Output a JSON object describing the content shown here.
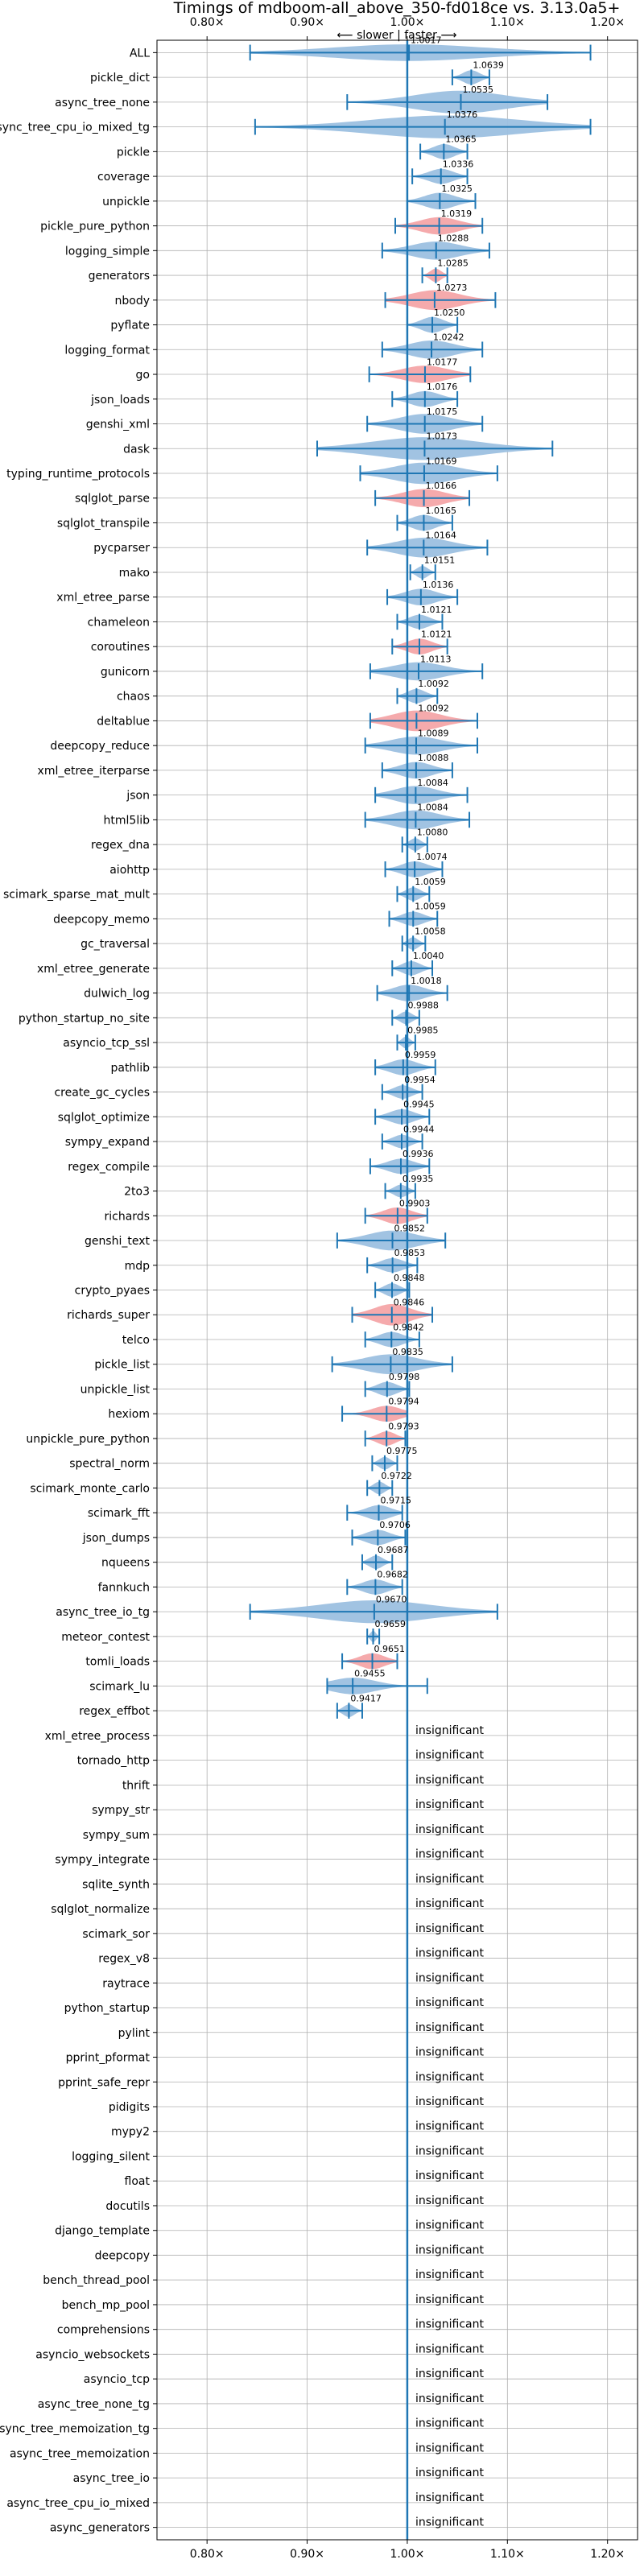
{
  "chart_data": {
    "type": "violin",
    "title": "Timings of mdboom-all_above_350-fd018ce vs. 3.13.0a5+",
    "direction_label": "⟵ slower | faster ⟶",
    "x_ticks": [
      "0.80×",
      "0.90×",
      "1.00×",
      "1.10×",
      "1.20×"
    ],
    "x_tick_values": [
      0.8,
      0.9,
      1.0,
      1.1,
      1.2
    ],
    "xlim": [
      0.75,
      1.23
    ],
    "reference_line": 1.0,
    "insignificant_label": "insignificant",
    "colors": {
      "blue": "#1f77b4",
      "violin_blue": "#9cc0e0",
      "violin_red": "#f4a5a8",
      "grid": "#b0b0b0"
    },
    "benchmarks": [
      {
        "name": "ALL",
        "value": 1.0017,
        "label": "1.0017",
        "lo": 0.843,
        "hi": 1.183,
        "q1": 0.985,
        "q3": 1.02,
        "w": 0.04,
        "color": "blue"
      },
      {
        "name": "pickle_dict",
        "value": 1.0639,
        "label": "1.0639",
        "lo": 1.045,
        "hi": 1.082,
        "q1": 1.055,
        "q3": 1.072,
        "w": 0.025,
        "color": "blue"
      },
      {
        "name": "async_tree_none",
        "value": 1.0535,
        "label": "1.0535",
        "lo": 0.94,
        "hi": 1.14,
        "q1": 1.0,
        "q3": 1.09,
        "w": 0.08,
        "color": "blue"
      },
      {
        "name": "async_tree_cpu_io_mixed_tg",
        "value": 1.0376,
        "label": "1.0376",
        "lo": 0.848,
        "hi": 1.183,
        "q1": 0.98,
        "q3": 1.1,
        "w": 0.12,
        "color": "blue"
      },
      {
        "name": "pickle",
        "value": 1.0365,
        "label": "1.0365",
        "lo": 1.013,
        "hi": 1.06,
        "q1": 1.03,
        "q3": 1.045,
        "w": 0.03,
        "color": "blue"
      },
      {
        "name": "coverage",
        "value": 1.0336,
        "label": "1.0336",
        "lo": 1.005,
        "hi": 1.06,
        "q1": 1.025,
        "q3": 1.045,
        "w": 0.03,
        "color": "blue"
      },
      {
        "name": "unpickle",
        "value": 1.0325,
        "label": "1.0325",
        "lo": 1.0,
        "hi": 1.068,
        "q1": 1.02,
        "q3": 1.045,
        "w": 0.04,
        "color": "blue"
      },
      {
        "name": "pickle_pure_python",
        "value": 1.0319,
        "label": "1.0319",
        "lo": 0.988,
        "hi": 1.075,
        "q1": 1.02,
        "q3": 1.045,
        "w": 0.045,
        "color": "red"
      },
      {
        "name": "logging_simple",
        "value": 1.0288,
        "label": "1.0288",
        "lo": 0.975,
        "hi": 1.082,
        "q1": 1.01,
        "q3": 1.05,
        "w": 0.05,
        "color": "blue"
      },
      {
        "name": "generators",
        "value": 1.0285,
        "label": "1.0285",
        "lo": 1.015,
        "hi": 1.04,
        "q1": 1.022,
        "q3": 1.034,
        "w": 0.02,
        "color": "red"
      },
      {
        "name": "nbody",
        "value": 1.0273,
        "label": "1.0273",
        "lo": 0.978,
        "hi": 1.088,
        "q1": 1.005,
        "q3": 1.05,
        "w": 0.06,
        "color": "red"
      },
      {
        "name": "pyflate",
        "value": 1.025,
        "label": "1.0250",
        "lo": 1.0,
        "hi": 1.05,
        "q1": 1.015,
        "q3": 1.035,
        "w": 0.035,
        "color": "blue"
      },
      {
        "name": "logging_format",
        "value": 1.0242,
        "label": "1.0242",
        "lo": 0.975,
        "hi": 1.075,
        "q1": 1.005,
        "q3": 1.045,
        "w": 0.05,
        "color": "blue"
      },
      {
        "name": "go",
        "value": 1.0177,
        "label": "1.0177",
        "lo": 0.962,
        "hi": 1.063,
        "q1": 1.005,
        "q3": 1.03,
        "w": 0.045,
        "color": "red"
      },
      {
        "name": "json_loads",
        "value": 1.0176,
        "label": "1.0176",
        "lo": 0.985,
        "hi": 1.05,
        "q1": 1.005,
        "q3": 1.03,
        "w": 0.035,
        "color": "blue"
      },
      {
        "name": "genshi_xml",
        "value": 1.0175,
        "label": "1.0175",
        "lo": 0.96,
        "hi": 1.075,
        "q1": 0.995,
        "q3": 1.04,
        "w": 0.06,
        "color": "blue"
      },
      {
        "name": "dask",
        "value": 1.0173,
        "label": "1.0173",
        "lo": 0.91,
        "hi": 1.145,
        "q1": 0.98,
        "q3": 1.06,
        "w": 0.09,
        "color": "blue"
      },
      {
        "name": "typing_runtime_protocols",
        "value": 1.0169,
        "label": "1.0169",
        "lo": 0.953,
        "hi": 1.09,
        "q1": 0.99,
        "q3": 1.045,
        "w": 0.07,
        "color": "blue"
      },
      {
        "name": "sqlglot_parse",
        "value": 1.0166,
        "label": "1.0166",
        "lo": 0.968,
        "hi": 1.062,
        "q1": 1.0,
        "q3": 1.035,
        "w": 0.05,
        "color": "red"
      },
      {
        "name": "sqlglot_transpile",
        "value": 1.0165,
        "label": "1.0165",
        "lo": 0.99,
        "hi": 1.045,
        "q1": 1.005,
        "q3": 1.028,
        "w": 0.035,
        "color": "blue"
      },
      {
        "name": "pycparser",
        "value": 1.0164,
        "label": "1.0164",
        "lo": 0.96,
        "hi": 1.08,
        "q1": 1.0,
        "q3": 1.035,
        "w": 0.06,
        "color": "blue"
      },
      {
        "name": "mako",
        "value": 1.0151,
        "label": "1.0151",
        "lo": 1.003,
        "hi": 1.028,
        "q1": 1.01,
        "q3": 1.02,
        "w": 0.015,
        "color": "blue"
      },
      {
        "name": "xml_etree_parse",
        "value": 1.0136,
        "label": "1.0136",
        "lo": 0.98,
        "hi": 1.05,
        "q1": 1.0,
        "q3": 1.028,
        "w": 0.04,
        "color": "blue"
      },
      {
        "name": "chameleon",
        "value": 1.0121,
        "label": "1.0121",
        "lo": 0.99,
        "hi": 1.035,
        "q1": 1.005,
        "q3": 1.02,
        "w": 0.025,
        "color": "blue"
      },
      {
        "name": "coroutines",
        "value": 1.0121,
        "label": "1.0121",
        "lo": 0.985,
        "hi": 1.04,
        "q1": 1.0,
        "q3": 1.025,
        "w": 0.035,
        "color": "red"
      },
      {
        "name": "gunicorn",
        "value": 1.0113,
        "label": "1.0113",
        "lo": 0.963,
        "hi": 1.075,
        "q1": 0.995,
        "q3": 1.03,
        "w": 0.05,
        "color": "blue"
      },
      {
        "name": "chaos",
        "value": 1.0092,
        "label": "1.0092",
        "lo": 0.99,
        "hi": 1.03,
        "q1": 1.0,
        "q3": 1.018,
        "w": 0.025,
        "color": "blue"
      },
      {
        "name": "deltablue",
        "value": 1.0092,
        "label": "1.0092",
        "lo": 0.963,
        "hi": 1.07,
        "q1": 0.99,
        "q3": 1.03,
        "w": 0.065,
        "color": "red"
      },
      {
        "name": "deepcopy_reduce",
        "value": 1.0089,
        "label": "1.0089",
        "lo": 0.958,
        "hi": 1.07,
        "q1": 0.99,
        "q3": 1.03,
        "w": 0.05,
        "color": "blue"
      },
      {
        "name": "xml_etree_iterparse",
        "value": 1.0088,
        "label": "1.0088",
        "lo": 0.975,
        "hi": 1.045,
        "q1": 0.998,
        "q3": 1.02,
        "w": 0.04,
        "color": "blue"
      },
      {
        "name": "json",
        "value": 1.0084,
        "label": "1.0084",
        "lo": 0.968,
        "hi": 1.06,
        "q1": 0.99,
        "q3": 1.025,
        "w": 0.05,
        "color": "blue"
      },
      {
        "name": "html5lib",
        "value": 1.0084,
        "label": "1.0084",
        "lo": 0.958,
        "hi": 1.062,
        "q1": 0.99,
        "q3": 1.028,
        "w": 0.055,
        "color": "blue"
      },
      {
        "name": "regex_dna",
        "value": 1.008,
        "label": "1.0080",
        "lo": 0.995,
        "hi": 1.02,
        "q1": 1.003,
        "q3": 1.013,
        "w": 0.015,
        "color": "blue"
      },
      {
        "name": "aiohttp",
        "value": 1.0074,
        "label": "1.0074",
        "lo": 0.978,
        "hi": 1.035,
        "q1": 0.995,
        "q3": 1.02,
        "w": 0.035,
        "color": "blue"
      },
      {
        "name": "scimark_sparse_mat_mult",
        "value": 1.0059,
        "label": "1.0059",
        "lo": 0.99,
        "hi": 1.022,
        "q1": 1.0,
        "q3": 1.012,
        "w": 0.02,
        "color": "blue"
      },
      {
        "name": "deepcopy_memo",
        "value": 1.0059,
        "label": "1.0059",
        "lo": 0.982,
        "hi": 1.03,
        "q1": 0.995,
        "q3": 1.015,
        "w": 0.025,
        "color": "blue"
      },
      {
        "name": "gc_traversal",
        "value": 1.0058,
        "label": "1.0058",
        "lo": 0.995,
        "hi": 1.018,
        "q1": 1.0,
        "q3": 1.01,
        "w": 0.015,
        "color": "blue"
      },
      {
        "name": "xml_etree_generate",
        "value": 1.004,
        "label": "1.0040",
        "lo": 0.985,
        "hi": 1.025,
        "q1": 0.995,
        "q3": 1.012,
        "w": 0.025,
        "color": "blue"
      },
      {
        "name": "dulwich_log",
        "value": 1.0018,
        "label": "1.0018",
        "lo": 0.97,
        "hi": 1.04,
        "q1": 0.99,
        "q3": 1.012,
        "w": 0.04,
        "color": "blue"
      },
      {
        "name": "python_startup_no_site",
        "value": 0.9988,
        "label": "0.9988",
        "lo": 0.985,
        "hi": 1.012,
        "q1": 0.993,
        "q3": 1.004,
        "w": 0.015,
        "color": "blue"
      },
      {
        "name": "asyncio_tcp_ssl",
        "value": 0.9985,
        "label": "0.9985",
        "lo": 0.99,
        "hi": 1.008,
        "q1": 0.995,
        "q3": 1.003,
        "w": 0.01,
        "color": "blue"
      },
      {
        "name": "pathlib",
        "value": 0.9959,
        "label": "0.9959",
        "lo": 0.968,
        "hi": 1.028,
        "q1": 0.985,
        "q3": 1.008,
        "w": 0.035,
        "color": "blue"
      },
      {
        "name": "create_gc_cycles",
        "value": 0.9954,
        "label": "0.9954",
        "lo": 0.975,
        "hi": 1.015,
        "q1": 0.988,
        "q3": 1.003,
        "w": 0.02,
        "color": "blue"
      },
      {
        "name": "sqlglot_optimize",
        "value": 0.9945,
        "label": "0.9945",
        "lo": 0.968,
        "hi": 1.022,
        "q1": 0.985,
        "q3": 1.005,
        "w": 0.03,
        "color": "blue"
      },
      {
        "name": "sympy_expand",
        "value": 0.9944,
        "label": "0.9944",
        "lo": 0.975,
        "hi": 1.015,
        "q1": 0.988,
        "q3": 1.003,
        "w": 0.02,
        "color": "blue"
      },
      {
        "name": "regex_compile",
        "value": 0.9936,
        "label": "0.9936",
        "lo": 0.963,
        "hi": 1.022,
        "q1": 0.982,
        "q3": 1.004,
        "w": 0.03,
        "color": "blue"
      },
      {
        "name": "2to3",
        "value": 0.9935,
        "label": "0.9935",
        "lo": 0.978,
        "hi": 1.008,
        "q1": 0.988,
        "q3": 0.999,
        "w": 0.015,
        "color": "blue"
      },
      {
        "name": "richards",
        "value": 0.9903,
        "label": "0.9903",
        "lo": 0.958,
        "hi": 1.02,
        "q1": 0.978,
        "q3": 1.0,
        "w": 0.04,
        "color": "red"
      },
      {
        "name": "genshi_text",
        "value": 0.9852,
        "label": "0.9852",
        "lo": 0.93,
        "hi": 1.038,
        "q1": 0.965,
        "q3": 1.0,
        "w": 0.06,
        "color": "blue"
      },
      {
        "name": "mdp",
        "value": 0.9853,
        "label": "0.9853",
        "lo": 0.96,
        "hi": 1.01,
        "q1": 0.975,
        "q3": 0.995,
        "w": 0.025,
        "color": "blue"
      },
      {
        "name": "crypto_pyaes",
        "value": 0.9848,
        "label": "0.9848",
        "lo": 0.968,
        "hi": 1.002,
        "q1": 0.978,
        "q3": 0.991,
        "w": 0.02,
        "color": "blue"
      },
      {
        "name": "richards_super",
        "value": 0.9846,
        "label": "0.9846",
        "lo": 0.945,
        "hi": 1.025,
        "q1": 0.97,
        "q3": 1.0,
        "w": 0.07,
        "color": "red"
      },
      {
        "name": "telco",
        "value": 0.9842,
        "label": "0.9842",
        "lo": 0.958,
        "hi": 1.012,
        "q1": 0.975,
        "q3": 0.994,
        "w": 0.03,
        "color": "blue"
      },
      {
        "name": "pickle_list",
        "value": 0.9835,
        "label": "0.9835",
        "lo": 0.925,
        "hi": 1.045,
        "q1": 0.96,
        "q3": 1.005,
        "w": 0.06,
        "color": "blue"
      },
      {
        "name": "unpickle_list",
        "value": 0.9798,
        "label": "0.9798",
        "lo": 0.958,
        "hi": 1.002,
        "q1": 0.972,
        "q3": 0.988,
        "w": 0.025,
        "color": "blue"
      },
      {
        "name": "hexiom",
        "value": 0.9794,
        "label": "0.9794",
        "lo": 0.935,
        "hi": 1.0,
        "q1": 0.968,
        "q3": 0.99,
        "w": 0.035,
        "color": "red"
      },
      {
        "name": "unpickle_pure_python",
        "value": 0.9793,
        "label": "0.9793",
        "lo": 0.958,
        "hi": 0.998,
        "q1": 0.972,
        "q3": 0.987,
        "w": 0.025,
        "color": "red"
      },
      {
        "name": "spectral_norm",
        "value": 0.9775,
        "label": "0.9775",
        "lo": 0.965,
        "hi": 0.99,
        "q1": 0.972,
        "q3": 0.983,
        "w": 0.015,
        "color": "blue"
      },
      {
        "name": "scimark_monte_carlo",
        "value": 0.9722,
        "label": "0.9722",
        "lo": 0.96,
        "hi": 0.985,
        "q1": 0.966,
        "q3": 0.978,
        "w": 0.015,
        "color": "blue"
      },
      {
        "name": "scimark_fft",
        "value": 0.9715,
        "label": "0.9715",
        "lo": 0.94,
        "hi": 0.995,
        "q1": 0.96,
        "q3": 0.982,
        "w": 0.03,
        "color": "blue"
      },
      {
        "name": "json_dumps",
        "value": 0.9706,
        "label": "0.9706",
        "lo": 0.945,
        "hi": 0.998,
        "q1": 0.962,
        "q3": 0.98,
        "w": 0.03,
        "color": "blue"
      },
      {
        "name": "nqueens",
        "value": 0.9687,
        "label": "0.9687",
        "lo": 0.955,
        "hi": 0.985,
        "q1": 0.963,
        "q3": 0.975,
        "w": 0.02,
        "color": "blue"
      },
      {
        "name": "fannkuch",
        "value": 0.9682,
        "label": "0.9682",
        "lo": 0.94,
        "hi": 0.995,
        "q1": 0.958,
        "q3": 0.978,
        "w": 0.03,
        "color": "blue"
      },
      {
        "name": "async_tree_io_tg",
        "value": 0.967,
        "label": "0.9670",
        "lo": 0.843,
        "hi": 1.09,
        "q1": 0.92,
        "q3": 1.02,
        "w": 0.12,
        "color": "blue"
      },
      {
        "name": "meteor_contest",
        "value": 0.9659,
        "label": "0.9659",
        "lo": 0.96,
        "hi": 0.972,
        "q1": 0.963,
        "q3": 0.969,
        "w": 0.008,
        "color": "blue"
      },
      {
        "name": "tomli_loads",
        "value": 0.9651,
        "label": "0.9651",
        "lo": 0.935,
        "hi": 0.99,
        "q1": 0.955,
        "q3": 0.975,
        "w": 0.035,
        "color": "red"
      },
      {
        "name": "scimark_lu",
        "value": 0.9455,
        "label": "0.9455",
        "lo": 0.92,
        "hi": 1.02,
        "q1": 0.935,
        "q3": 0.96,
        "w": 0.04,
        "color": "blue"
      },
      {
        "name": "regex_effbot",
        "value": 0.9417,
        "label": "0.9417",
        "lo": 0.93,
        "hi": 0.955,
        "q1": 0.936,
        "q3": 0.948,
        "w": 0.015,
        "color": "blue"
      },
      {
        "name": "xml_etree_process",
        "insignificant": true
      },
      {
        "name": "tornado_http",
        "insignificant": true
      },
      {
        "name": "thrift",
        "insignificant": true
      },
      {
        "name": "sympy_str",
        "insignificant": true
      },
      {
        "name": "sympy_sum",
        "insignificant": true
      },
      {
        "name": "sympy_integrate",
        "insignificant": true
      },
      {
        "name": "sqlite_synth",
        "insignificant": true
      },
      {
        "name": "sqlglot_normalize",
        "insignificant": true
      },
      {
        "name": "scimark_sor",
        "insignificant": true
      },
      {
        "name": "regex_v8",
        "insignificant": true
      },
      {
        "name": "raytrace",
        "insignificant": true
      },
      {
        "name": "python_startup",
        "insignificant": true
      },
      {
        "name": "pylint",
        "insignificant": true
      },
      {
        "name": "pprint_pformat",
        "insignificant": true
      },
      {
        "name": "pprint_safe_repr",
        "insignificant": true
      },
      {
        "name": "pidigits",
        "insignificant": true
      },
      {
        "name": "mypy2",
        "insignificant": true
      },
      {
        "name": "logging_silent",
        "insignificant": true
      },
      {
        "name": "float",
        "insignificant": true
      },
      {
        "name": "docutils",
        "insignificant": true
      },
      {
        "name": "django_template",
        "insignificant": true
      },
      {
        "name": "deepcopy",
        "insignificant": true
      },
      {
        "name": "bench_thread_pool",
        "insignificant": true
      },
      {
        "name": "bench_mp_pool",
        "insignificant": true
      },
      {
        "name": "comprehensions",
        "insignificant": true
      },
      {
        "name": "asyncio_websockets",
        "insignificant": true
      },
      {
        "name": "asyncio_tcp",
        "insignificant": true
      },
      {
        "name": "async_tree_none_tg",
        "insignificant": true
      },
      {
        "name": "async_tree_memoization_tg",
        "insignificant": true
      },
      {
        "name": "async_tree_memoization",
        "insignificant": true
      },
      {
        "name": "async_tree_io",
        "insignificant": true
      },
      {
        "name": "async_tree_cpu_io_mixed",
        "insignificant": true
      },
      {
        "name": "async_generators",
        "insignificant": true
      }
    ]
  }
}
